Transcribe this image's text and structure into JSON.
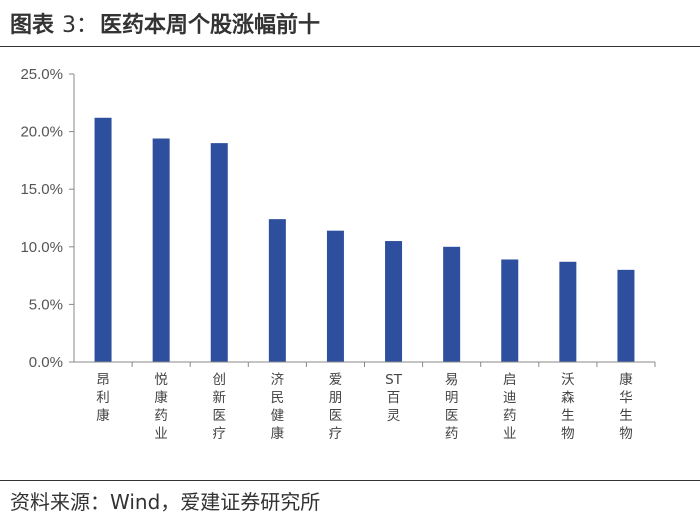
{
  "header": {
    "label": "图表",
    "number": "3：",
    "title": "医药本周个股涨幅前十"
  },
  "source": "资料来源：Wind，爱建证券研究所",
  "colors": {
    "bar": "#2E4F9E",
    "axis": "#888888"
  },
  "chart_data": {
    "type": "bar",
    "categories": [
      "昂利康",
      "悦康药业",
      "创新医疗",
      "济民健康",
      "爱朋医疗",
      "ST百灵",
      "易明医药",
      "启迪药业",
      "沃森生物",
      "康华生物"
    ],
    "values": [
      21.2,
      19.4,
      19.0,
      12.4,
      11.4,
      10.5,
      10.0,
      8.9,
      8.7,
      8.0
    ],
    "ylim": [
      0,
      25
    ],
    "yticks": [
      "0.0%",
      "5.0%",
      "10.0%",
      "15.0%",
      "20.0%",
      "25.0%"
    ],
    "ytick_values": [
      0,
      5,
      10,
      15,
      20,
      25
    ],
    "grid": false
  }
}
